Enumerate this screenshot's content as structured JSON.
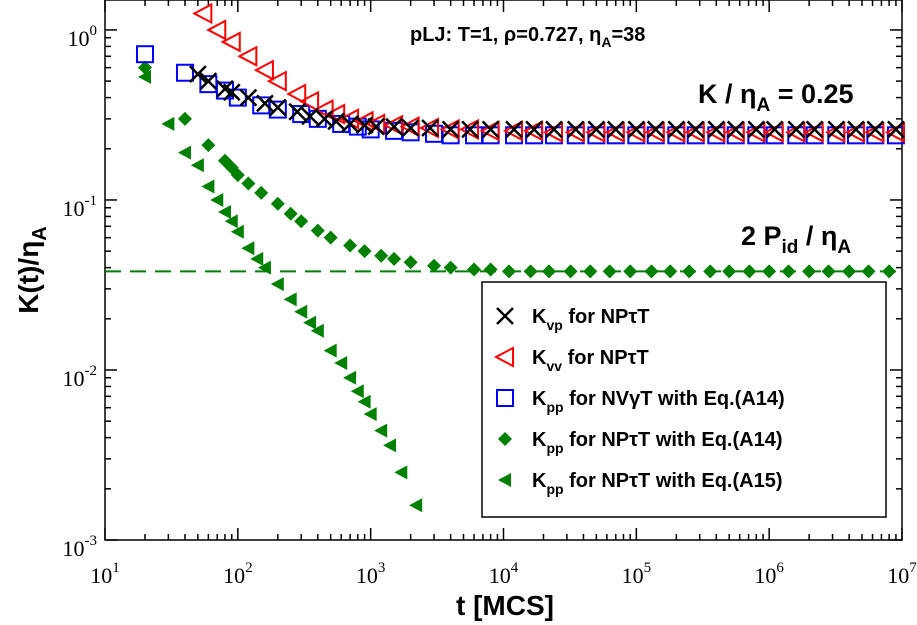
{
  "chart_data": {
    "type": "scatter",
    "title": "pLJ: T=1, ρ=0.727, η",
    "title_sub": "A",
    "title_tail": "=38",
    "xlabel": "t [MCS]",
    "ylabel_main": "K(t)/η",
    "ylabel_sub": "A",
    "x_scale": "log",
    "y_scale": "log",
    "xlim": [
      10,
      10000000
    ],
    "ylim": [
      0.001,
      1.5
    ],
    "x_ticks": [
      {
        "base": "10",
        "exp": "1",
        "value": 10
      },
      {
        "base": "10",
        "exp": "2",
        "value": 100
      },
      {
        "base": "10",
        "exp": "3",
        "value": 1000
      },
      {
        "base": "10",
        "exp": "4",
        "value": 10000
      },
      {
        "base": "10",
        "exp": "5",
        "value": 100000
      },
      {
        "base": "10",
        "exp": "6",
        "value": 1000000
      },
      {
        "base": "10",
        "exp": "7",
        "value": 10000000
      }
    ],
    "y_ticks": [
      {
        "base": "10",
        "exp": "-3",
        "value": 0.001
      },
      {
        "base": "10",
        "exp": "-2",
        "value": 0.01
      },
      {
        "base": "10",
        "exp": "-1",
        "value": 0.1
      },
      {
        "base": "10",
        "exp": "0",
        "value": 1
      }
    ],
    "annotations": [
      {
        "main": "K / η",
        "sub": "A",
        "tail": " = 0.25",
        "color": "#0000ff"
      },
      {
        "main": "2 P",
        "sub": "id",
        "mid": " / η",
        "sub2": "A",
        "color": "#008000"
      }
    ],
    "reference_lines": [
      {
        "y": 0.038,
        "style": "dashed",
        "color": "#008000"
      }
    ],
    "legend_position": "lower-right",
    "series": [
      {
        "name": "Kvp for NPτT",
        "label_main": "K",
        "label_sub": "vp",
        "label_tail": " for NPτT",
        "marker": "x",
        "color": "#000000",
        "x": [
          50,
          60,
          80,
          90,
          120,
          160,
          200,
          280,
          350,
          450,
          550,
          700,
          900,
          1100,
          1500,
          2000,
          2800,
          4000,
          5600,
          8000,
          12000,
          17000,
          24000,
          35000,
          50000,
          70000,
          100000,
          140000,
          200000,
          280000,
          400000,
          560000,
          800000,
          1100000,
          1600000,
          2200000,
          3200000,
          4500000,
          6300000,
          9000000
        ],
        "y": [
          0.55,
          0.5,
          0.45,
          0.43,
          0.4,
          0.37,
          0.35,
          0.33,
          0.31,
          0.3,
          0.29,
          0.28,
          0.275,
          0.27,
          0.27,
          0.265,
          0.265,
          0.26,
          0.26,
          0.26,
          0.26,
          0.26,
          0.26,
          0.26,
          0.26,
          0.26,
          0.26,
          0.26,
          0.26,
          0.26,
          0.26,
          0.26,
          0.26,
          0.26,
          0.26,
          0.26,
          0.26,
          0.26,
          0.26,
          0.26
        ]
      },
      {
        "name": "Kvv for NPτT",
        "label_main": "K",
        "label_sub": "vv",
        "label_tail": " for NPτT",
        "marker": "triangle-left",
        "color": "#ff0000",
        "x": [
          55,
          70,
          90,
          120,
          160,
          200,
          280,
          350,
          450,
          550,
          700,
          900,
          1100,
          1500,
          2000,
          2800,
          4000,
          5600,
          8000,
          12000,
          17000,
          24000,
          35000,
          50000,
          70000,
          100000,
          140000,
          200000,
          280000,
          400000,
          560000,
          800000,
          1100000,
          1600000,
          2200000,
          3200000,
          4500000,
          6300000,
          9000000
        ],
        "y": [
          1.25,
          1.0,
          0.85,
          0.7,
          0.58,
          0.5,
          0.42,
          0.38,
          0.34,
          0.32,
          0.3,
          0.29,
          0.28,
          0.275,
          0.27,
          0.265,
          0.26,
          0.26,
          0.255,
          0.255,
          0.255,
          0.25,
          0.25,
          0.25,
          0.25,
          0.25,
          0.25,
          0.25,
          0.25,
          0.25,
          0.25,
          0.25,
          0.25,
          0.25,
          0.25,
          0.25,
          0.25,
          0.25,
          0.25
        ]
      },
      {
        "name": "Kpp for NVγT with Eq.(A14)",
        "label_main": "K",
        "label_sub": "pp",
        "label_tail": " for NVγT with Eq.(A14)",
        "marker": "square",
        "color": "#0000ff",
        "x": [
          20,
          40,
          60,
          80,
          100,
          150,
          200,
          300,
          400,
          600,
          800,
          1000,
          1500,
          2000,
          3000,
          4000,
          6000,
          8000,
          12000,
          17000,
          24000,
          35000,
          50000,
          70000,
          100000,
          140000,
          200000,
          280000,
          400000,
          560000,
          800000,
          1100000,
          1600000,
          2200000,
          3200000,
          4500000,
          6300000,
          9000000
        ],
        "y": [
          0.72,
          0.56,
          0.48,
          0.44,
          0.4,
          0.36,
          0.34,
          0.32,
          0.3,
          0.28,
          0.27,
          0.26,
          0.255,
          0.25,
          0.245,
          0.24,
          0.24,
          0.24,
          0.24,
          0.24,
          0.24,
          0.24,
          0.24,
          0.24,
          0.24,
          0.24,
          0.24,
          0.24,
          0.24,
          0.24,
          0.24,
          0.24,
          0.24,
          0.24,
          0.24,
          0.24,
          0.24,
          0.24
        ]
      },
      {
        "name": "Kpp for NPτT with Eq.(A14)",
        "label_main": "K",
        "label_sub": "pp",
        "label_tail": " for NPτT with Eq.(A14)",
        "marker": "diamond",
        "color": "#008000",
        "x": [
          20,
          40,
          60,
          80,
          90,
          100,
          120,
          150,
          200,
          250,
          300,
          400,
          500,
          700,
          900,
          1200,
          1500,
          2000,
          3000,
          4000,
          6000,
          8000,
          11000,
          16000,
          22000,
          32000,
          45000,
          63000,
          90000,
          130000,
          180000,
          250000,
          360000,
          500000,
          710000,
          1000000,
          1400000,
          2000000,
          2800000,
          4000000,
          5600000,
          8000000
        ],
        "y": [
          0.6,
          0.3,
          0.21,
          0.17,
          0.155,
          0.14,
          0.125,
          0.11,
          0.095,
          0.083,
          0.075,
          0.066,
          0.06,
          0.054,
          0.05,
          0.047,
          0.045,
          0.043,
          0.041,
          0.04,
          0.039,
          0.039,
          0.038,
          0.038,
          0.038,
          0.038,
          0.038,
          0.038,
          0.038,
          0.038,
          0.038,
          0.038,
          0.038,
          0.038,
          0.038,
          0.038,
          0.038,
          0.038,
          0.038,
          0.038,
          0.038,
          0.038
        ]
      },
      {
        "name": "Kpp for NPτT with Eq.(A15)",
        "label_main": "K",
        "label_sub": "pp",
        "label_tail": " for NPτT with Eq.(A15)",
        "marker": "triangle-left-filled",
        "color": "#008000",
        "x": [
          20,
          30,
          40,
          50,
          60,
          70,
          80,
          90,
          100,
          120,
          140,
          160,
          200,
          250,
          300,
          350,
          400,
          500,
          600,
          700,
          800,
          900,
          1000,
          1200,
          1400,
          1700,
          2200
        ],
        "y": [
          0.53,
          0.28,
          0.19,
          0.16,
          0.12,
          0.1,
          0.085,
          0.075,
          0.065,
          0.052,
          0.045,
          0.04,
          0.032,
          0.026,
          0.022,
          0.019,
          0.017,
          0.013,
          0.011,
          0.009,
          0.0075,
          0.0065,
          0.0055,
          0.0044,
          0.0036,
          0.0025,
          0.0016
        ]
      }
    ]
  }
}
